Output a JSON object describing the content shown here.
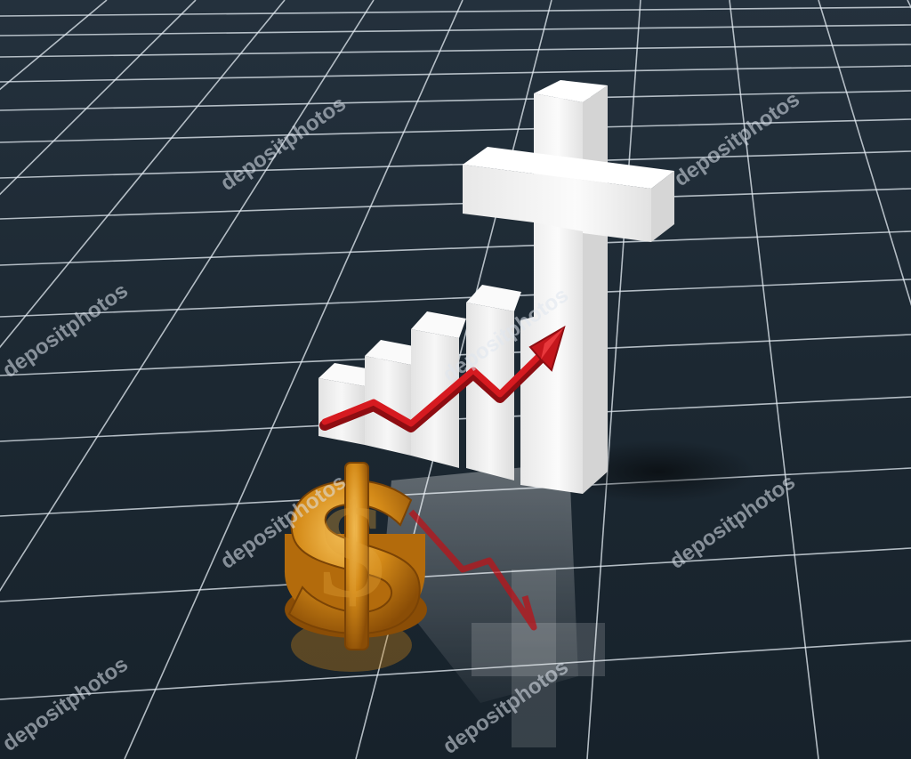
{
  "scene": {
    "background_color": "#1a2630",
    "grid_color": "#e6edf4",
    "bar_color": "#f2f2f2",
    "cross_color": "#f4f4f4",
    "arrow_color": "#c4161c",
    "dollar_color": "#d58a18"
  },
  "objects": {
    "dollar_symbol": "$",
    "trend": "upward"
  },
  "watermark": {
    "text": "depositphotos"
  }
}
